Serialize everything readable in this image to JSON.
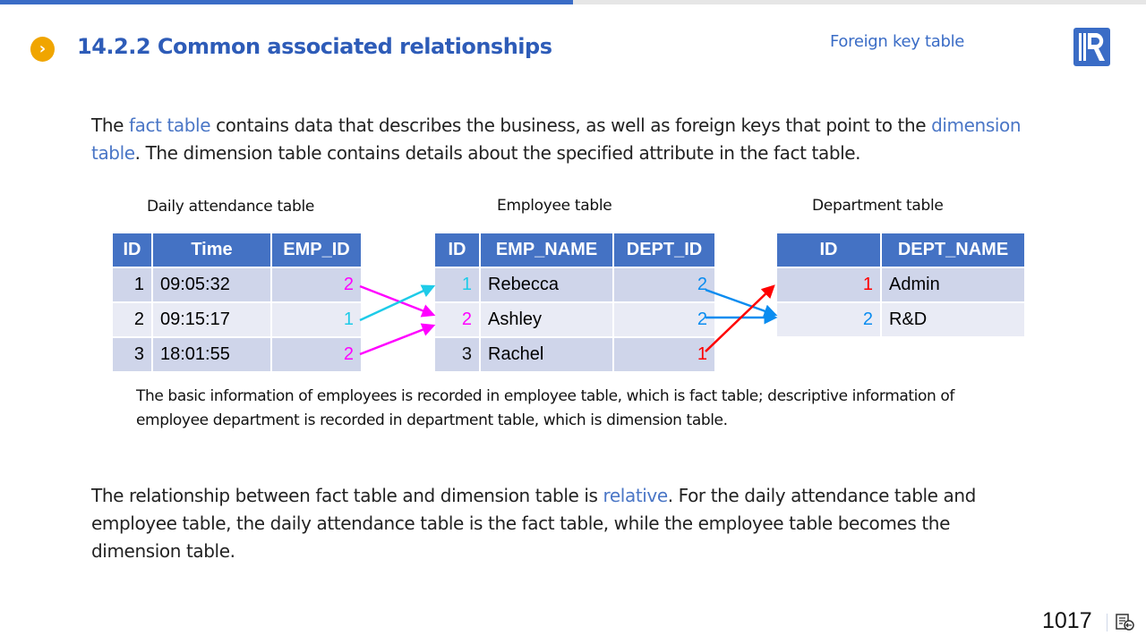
{
  "header": {
    "title": "14.2.2 Common associated relationships",
    "section_label": "Foreign key table",
    "logo_letter": "R"
  },
  "intro": {
    "p1": "The ",
    "h1": "fact table",
    "p2": " contains data that describes the business, as well as foreign keys that point to the ",
    "h2": "dimension table",
    "p3": ". The dimension table contains details about the specified attribute in the fact table."
  },
  "tables": {
    "attendance": {
      "caption": "Daily attendance table",
      "headers": [
        "ID",
        "Time",
        "EMP_ID"
      ],
      "rows": [
        [
          "1",
          "09:05:32",
          "2"
        ],
        [
          "2",
          "09:15:17",
          "1"
        ],
        [
          "3",
          "18:01:55",
          "2"
        ]
      ],
      "emp_id_colors": [
        "#ff00ff",
        "#1ecbe8",
        "#ff00ff"
      ]
    },
    "employee": {
      "caption": "Employee table",
      "headers": [
        "ID",
        "EMP_NAME",
        "DEPT_ID"
      ],
      "rows": [
        [
          "1",
          "Rebecca",
          "2"
        ],
        [
          "2",
          "Ashley",
          "2"
        ],
        [
          "3",
          "Rachel",
          "1"
        ]
      ],
      "id_colors": [
        "#1ecbe8",
        "#ff00ff",
        "#111111"
      ],
      "dept_colors": [
        "#0a8cf0",
        "#0a8cf0",
        "#ff0000"
      ]
    },
    "department": {
      "caption": "Department table",
      "headers": [
        "ID",
        "DEPT_NAME"
      ],
      "rows": [
        [
          "1",
          "Admin"
        ],
        [
          "2",
          "R&D"
        ]
      ],
      "id_colors": [
        "#ff0000",
        "#0a8cf0"
      ]
    }
  },
  "note": "The basic information of employees is recorded in employee table, which is fact table; descriptive information of employee department is recorded in department table, which is dimension table.",
  "outro": {
    "p1": "The relationship between fact table and dimension table is ",
    "h1": "relative",
    "p2": ". For the daily attendance table and employee table, the daily attendance table is the fact table, while the employee table becomes the dimension table."
  },
  "footer": {
    "page_number": "1017",
    "icon": "presentation-notes-icon"
  }
}
